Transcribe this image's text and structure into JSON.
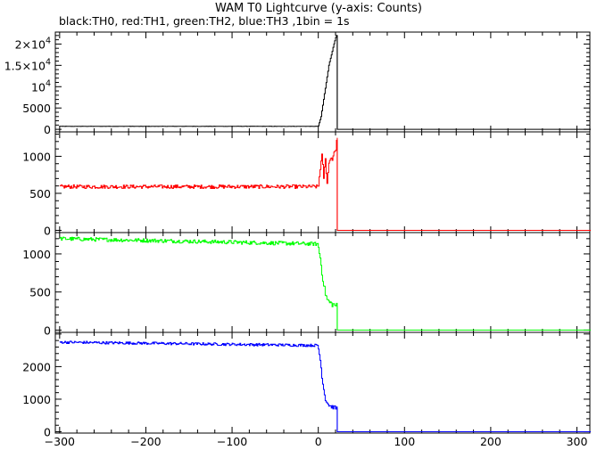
{
  "chart_data": {
    "type": "line",
    "title": "WAM T0 Lightcurve (y-axis: Counts)",
    "subtitle": "black:TH0, red:TH1, green:TH2, blue:TH3 ,1bin = 1s",
    "xlabel": "",
    "xlim": [
      -305,
      315
    ],
    "x_ticks": [
      -300,
      -200,
      -100,
      0,
      100,
      200,
      300
    ],
    "x_tick_labels": [
      "−300",
      "−200",
      "−100",
      "0",
      "100",
      "200",
      "300"
    ],
    "grid": false,
    "panels": [
      {
        "series_name": "TH0",
        "color": "#000000",
        "ylim": [
          -600,
          22800
        ],
        "y_ticks": [
          0,
          5000,
          10000,
          15000,
          20000
        ],
        "y_tick_labels": [
          {
            "base": "0",
            "sup": ""
          },
          {
            "base": "5000",
            "sup": ""
          },
          {
            "base": "10",
            "sup": "4"
          },
          {
            "base": "1.5×10",
            "sup": "4"
          },
          {
            "base": "2×10",
            "sup": "4"
          }
        ],
        "baseline": 700,
        "noise": 35,
        "post_level": 0,
        "burst": [
          [
            0,
            800
          ],
          [
            3,
            3000
          ],
          [
            6,
            7000
          ],
          [
            9,
            11000
          ],
          [
            12,
            15000
          ],
          [
            15,
            17500
          ],
          [
            18,
            20000
          ],
          [
            20,
            21500
          ],
          [
            21,
            22000
          ]
        ]
      },
      {
        "series_name": "TH1",
        "color": "#ff0000",
        "ylim": [
          -30,
          1330
        ],
        "y_ticks": [
          0,
          500,
          1000
        ],
        "y_tick_labels": [
          {
            "base": "0",
            "sup": ""
          },
          {
            "base": "500",
            "sup": ""
          },
          {
            "base": "1000",
            "sup": ""
          }
        ],
        "baseline": 590,
        "noise": 25,
        "post_level": 0,
        "burst": [
          [
            0,
            600
          ],
          [
            2,
            850
          ],
          [
            4,
            1000
          ],
          [
            6,
            720
          ],
          [
            8,
            950
          ],
          [
            10,
            650
          ],
          [
            12,
            900
          ],
          [
            14,
            1000
          ],
          [
            16,
            950
          ],
          [
            18,
            1080
          ],
          [
            20,
            1050
          ],
          [
            21,
            1250
          ]
        ]
      },
      {
        "series_name": "TH2",
        "color": "#00ff00",
        "ylim": [
          -30,
          1280
        ],
        "y_ticks": [
          0,
          500,
          1000
        ],
        "y_tick_labels": [
          {
            "base": "0",
            "sup": ""
          },
          {
            "base": "500",
            "sup": ""
          },
          {
            "base": "1000",
            "sup": ""
          }
        ],
        "baseline_start": 1200,
        "baseline_end": 1130,
        "noise": 25,
        "post_level": 0,
        "burst": [
          [
            0,
            1080
          ],
          [
            2,
            950
          ],
          [
            4,
            750
          ],
          [
            6,
            600
          ],
          [
            8,
            480
          ],
          [
            10,
            400
          ],
          [
            13,
            360
          ],
          [
            16,
            340
          ],
          [
            21,
            320
          ]
        ]
      },
      {
        "series_name": "TH3",
        "color": "#0000ff",
        "ylim": [
          -40,
          3050
        ],
        "y_ticks": [
          0,
          1000,
          2000
        ],
        "y_tick_labels": [
          {
            "base": "0",
            "sup": ""
          },
          {
            "base": "1000",
            "sup": ""
          },
          {
            "base": "2000",
            "sup": ""
          }
        ],
        "baseline_start": 2750,
        "baseline_end": 2650,
        "noise": 40,
        "post_level": 0,
        "burst": [
          [
            0,
            2550
          ],
          [
            2,
            2200
          ],
          [
            4,
            1700
          ],
          [
            6,
            1300
          ],
          [
            8,
            1000
          ],
          [
            11,
            850
          ],
          [
            14,
            780
          ],
          [
            21,
            720
          ]
        ]
      }
    ]
  }
}
